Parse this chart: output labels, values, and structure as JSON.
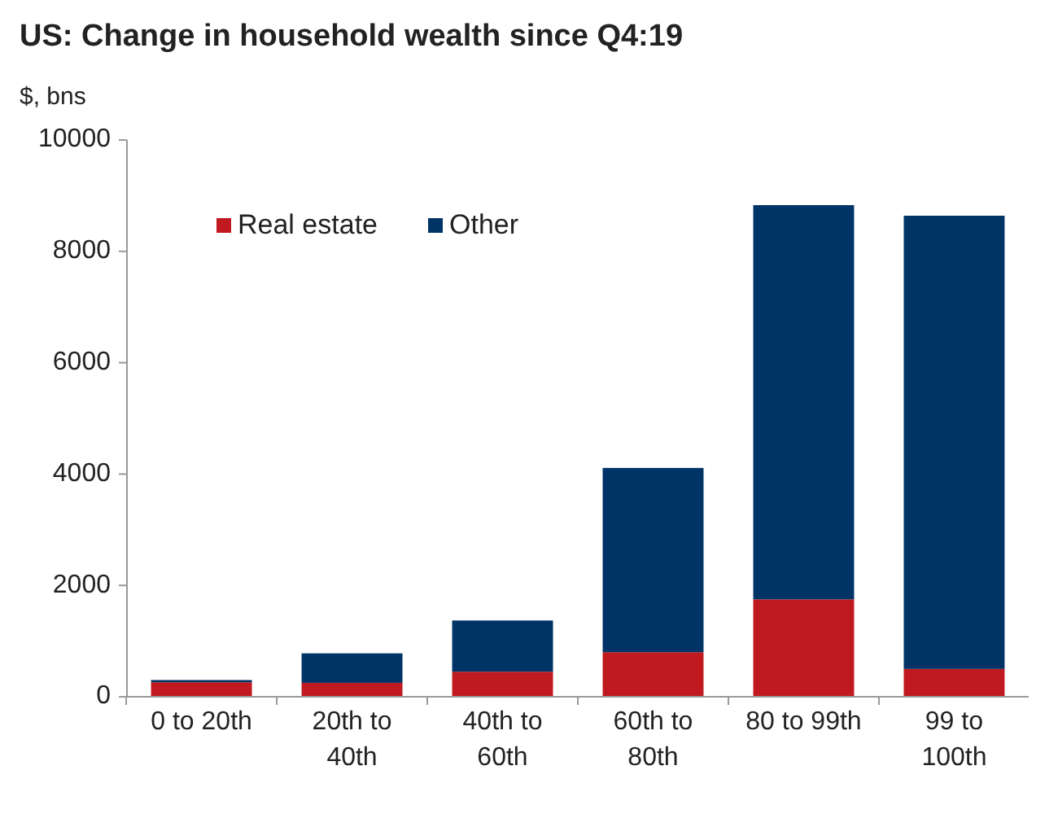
{
  "chart_data": {
    "type": "bar",
    "title": "US: Change in household wealth since Q4:19",
    "ylabel": "$, bns",
    "categories": [
      "0 to 20th",
      "20th to 40th",
      "40th to 60th",
      "60th to 80th",
      "80 to 99th",
      "99 to 100th"
    ],
    "stacked": true,
    "series": [
      {
        "name": "Real estate",
        "color": "#c0191f",
        "values": [
          260,
          250,
          450,
          800,
          1750,
          500
        ]
      },
      {
        "name": "Other",
        "color": "#003366",
        "values": [
          40,
          530,
          920,
          3310,
          7080,
          8140
        ]
      }
    ],
    "ylim": [
      0,
      10000
    ],
    "yticks": [
      0,
      2000,
      4000,
      6000,
      8000,
      10000
    ],
    "grid": false,
    "legend": "top left"
  }
}
